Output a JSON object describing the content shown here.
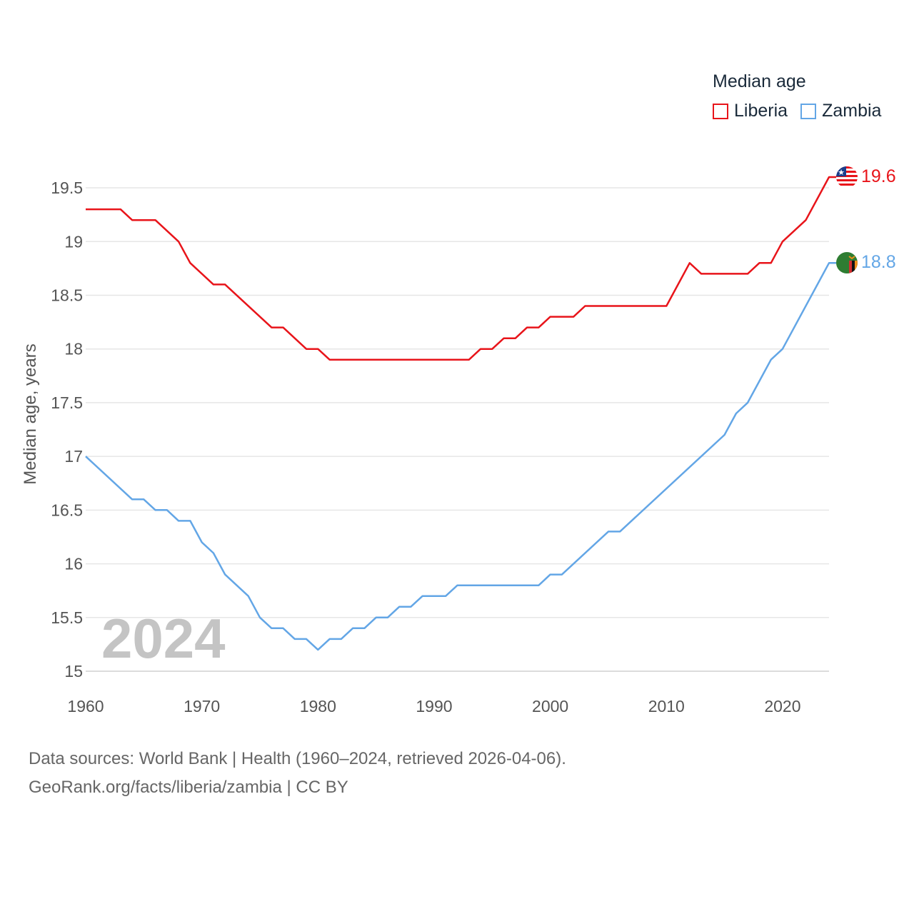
{
  "chart_data": {
    "type": "line",
    "title": "Median age",
    "ylabel": "Median age, years",
    "xlabel": "",
    "xlim": [
      1960,
      2024
    ],
    "ylim": [
      15,
      19.7
    ],
    "yticks": [
      "15",
      "15.5",
      "16",
      "16.5",
      "17",
      "17.5",
      "18",
      "18.5",
      "19",
      "19.5"
    ],
    "xticks": [
      "1960",
      "1970",
      "1980",
      "1990",
      "2000",
      "2010",
      "2020"
    ],
    "current_year": "2024",
    "series": [
      {
        "name": "Liberia",
        "color": "#e8141a",
        "end_label": "19.6",
        "x": [
          1960,
          1963,
          1964,
          1966,
          1968,
          1969,
          1971,
          1972,
          1976,
          1977,
          1979,
          1980,
          1981,
          1993,
          1994,
          1995,
          1996,
          1997,
          1998,
          1999,
          2000,
          2002,
          2003,
          2010,
          2012,
          2013,
          2017,
          2018,
          2019,
          2020,
          2022,
          2024
        ],
        "values": [
          19.3,
          19.3,
          19.2,
          19.2,
          19.0,
          18.8,
          18.6,
          18.6,
          18.2,
          18.2,
          18.0,
          18.0,
          17.9,
          17.9,
          18.0,
          18.0,
          18.1,
          18.1,
          18.2,
          18.2,
          18.3,
          18.3,
          18.4,
          18.4,
          18.8,
          18.7,
          18.7,
          18.8,
          18.8,
          19.0,
          19.2,
          19.6
        ]
      },
      {
        "name": "Zambia",
        "color": "#63a6e6",
        "end_label": "18.8",
        "x": [
          1960,
          1964,
          1965,
          1966,
          1967,
          1968,
          1969,
          1970,
          1971,
          1972,
          1974,
          1975,
          1976,
          1977,
          1978,
          1979,
          1980,
          1981,
          1982,
          1983,
          1984,
          1985,
          1986,
          1987,
          1988,
          1989,
          1991,
          1992,
          1999,
          2000,
          2001,
          2005,
          2006,
          2015,
          2016,
          2017,
          2019,
          2020,
          2024
        ],
        "values": [
          17.0,
          16.6,
          16.6,
          16.5,
          16.5,
          16.4,
          16.4,
          16.2,
          16.1,
          15.9,
          15.7,
          15.5,
          15.4,
          15.4,
          15.3,
          15.3,
          15.2,
          15.3,
          15.3,
          15.4,
          15.4,
          15.5,
          15.5,
          15.6,
          15.6,
          15.7,
          15.7,
          15.8,
          15.8,
          15.9,
          15.9,
          16.3,
          16.3,
          17.2,
          17.4,
          17.5,
          17.9,
          18.0,
          18.8
        ]
      }
    ]
  },
  "legend": {
    "title": "Median age",
    "items": [
      "Liberia",
      "Zambia"
    ]
  },
  "footer": {
    "line1": "Data sources: World Bank | Health (1960–2024, retrieved 2026-04-06).",
    "line2": "GeoRank.org/facts/liberia/zambia | CC BY"
  }
}
